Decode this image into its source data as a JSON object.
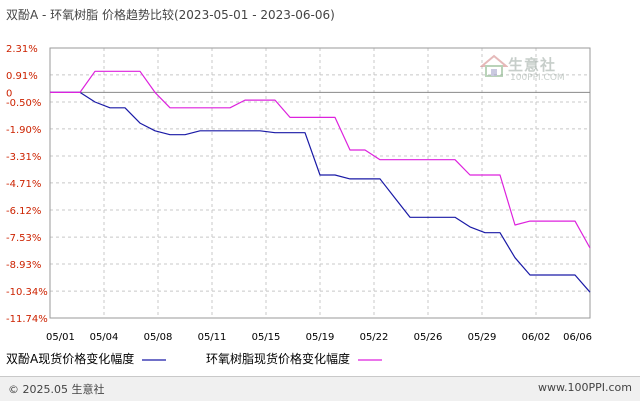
{
  "title": "双酚A - 环氧树脂 价格趋势比较(2023-05-01 - 2023-06-06)",
  "watermark": {
    "name": "生意社",
    "url": "100PPI.COM"
  },
  "footer": {
    "copyright": "© 2025.05 生意社",
    "url": "www.100PPI.com"
  },
  "chart_data": {
    "type": "line",
    "title": "双酚A - 环氧树脂 价格趋势比较(2023-05-01 - 2023-06-06)",
    "xlabel": "",
    "ylabel": "",
    "x_ticks": [
      "05/01",
      "05/04",
      "05/08",
      "05/11",
      "05/15",
      "05/19",
      "05/22",
      "05/26",
      "05/29",
      "06/02",
      "06/06"
    ],
    "y_ticks": [
      "2.31%",
      "0.91%",
      "0",
      "-0.50%",
      "-1.90%",
      "-3.31%",
      "-4.71%",
      "-6.12%",
      "-7.53%",
      "-8.93%",
      "-10.34%",
      "-11.74%"
    ],
    "ylim": [
      -11.74,
      2.31
    ],
    "grid": true,
    "legend_position": "bottom",
    "series": [
      {
        "name": "双酚A现货价格变化幅度",
        "color": "#1a1aa6",
        "x": [
          "05/01",
          "05/02",
          "05/03",
          "05/04",
          "05/05",
          "05/06",
          "05/07",
          "05/08",
          "05/09",
          "05/10",
          "05/11",
          "05/12",
          "05/13",
          "05/14",
          "05/15",
          "05/16",
          "05/17",
          "05/18",
          "05/19",
          "05/20",
          "05/21",
          "05/22",
          "05/23",
          "05/24",
          "05/25",
          "05/26",
          "05/27",
          "05/28",
          "05/29",
          "05/30",
          "05/31",
          "06/01",
          "06/02",
          "06/03",
          "06/04",
          "06/05",
          "06/06"
        ],
        "values": [
          0,
          0,
          0,
          -0.5,
          -0.8,
          -0.8,
          -1.6,
          -2.0,
          -2.2,
          -2.2,
          -2.0,
          -2.0,
          -2.0,
          -2.0,
          -2.0,
          -2.1,
          -2.1,
          -2.1,
          -4.3,
          -4.3,
          -4.5,
          -4.5,
          -4.5,
          -5.5,
          -6.5,
          -6.5,
          -6.5,
          -6.5,
          -7.0,
          -7.3,
          -7.3,
          -8.6,
          -9.5,
          -9.5,
          -9.5,
          -9.5,
          -10.4
        ]
      },
      {
        "name": "环氧树脂现货价格变化幅度",
        "color": "#dd22dd",
        "x": [
          "05/01",
          "05/02",
          "05/03",
          "05/04",
          "05/05",
          "05/06",
          "05/07",
          "05/08",
          "05/09",
          "05/10",
          "05/11",
          "05/12",
          "05/13",
          "05/14",
          "05/15",
          "05/16",
          "05/17",
          "05/18",
          "05/19",
          "05/20",
          "05/21",
          "05/22",
          "05/23",
          "05/24",
          "05/25",
          "05/26",
          "05/27",
          "05/28",
          "05/29",
          "05/30",
          "05/31",
          "06/01",
          "06/02",
          "06/03",
          "06/04",
          "06/05",
          "06/06"
        ],
        "values": [
          0,
          0,
          0,
          1.1,
          1.1,
          1.1,
          1.1,
          0,
          -0.8,
          -0.8,
          -0.8,
          -0.8,
          -0.8,
          -0.4,
          -0.4,
          -0.4,
          -1.3,
          -1.3,
          -1.3,
          -1.3,
          -3.0,
          -3.0,
          -3.5,
          -3.5,
          -3.5,
          -3.5,
          -3.5,
          -3.5,
          -4.3,
          -4.3,
          -4.3,
          -6.9,
          -6.7,
          -6.7,
          -6.7,
          -6.7,
          -8.1
        ]
      }
    ]
  }
}
